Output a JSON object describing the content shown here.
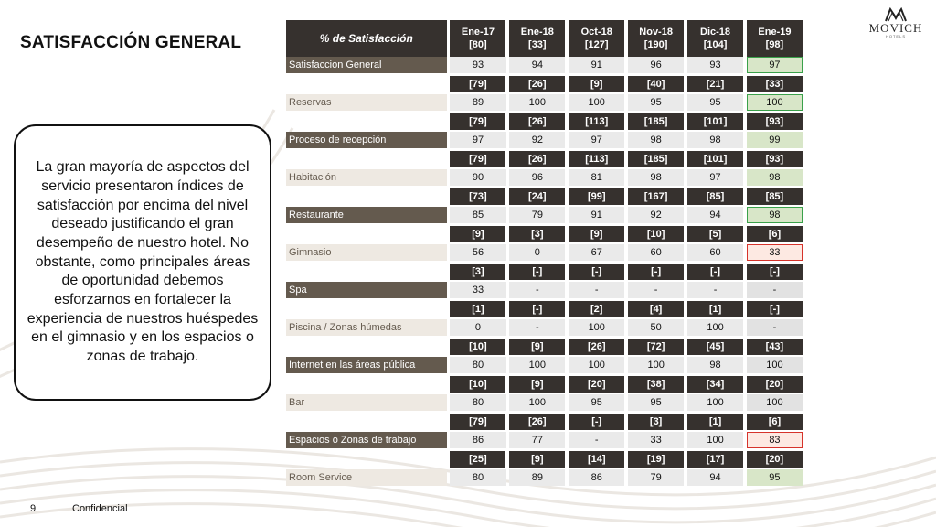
{
  "slide": {
    "title": "SATISFACCIÓN GENERAL",
    "callout": "La gran mayoría de aspectos del servicio presentaron índices de satisfacción por encima del nivel deseado justificando el gran desempeño de nuestro hotel. No obstante, como principales áreas de oportunidad debemos esforzarnos en fortalecer la experiencia de nuestros huéspedes en el gimnasio y en los espacios o zonas de trabajo.",
    "logo": {
      "name": "MOVICH",
      "sub": "HOTELS"
    },
    "footer": {
      "page": "9",
      "label": "Confidencial"
    }
  },
  "table": {
    "header_label": "% de Satisfacción",
    "columns": [
      {
        "period": "Ene-17",
        "n": "[80]"
      },
      {
        "period": "Ene-18",
        "n": "[33]"
      },
      {
        "period": "Oct-18",
        "n": "[127]"
      },
      {
        "period": "Nov-18",
        "n": "[190]"
      },
      {
        "period": "Dic-18",
        "n": "[104]"
      },
      {
        "period": "Ene-19",
        "n": "[98]"
      }
    ],
    "rows": [
      {
        "label": "Satisfaccion General",
        "style": "dark",
        "counts": [],
        "values": [
          "93",
          "94",
          "91",
          "96",
          "93",
          "97"
        ],
        "last_style": "hl-green"
      },
      {
        "label": "Reservas",
        "style": "light",
        "counts": [
          "[79]",
          "[26]",
          "[9]",
          "[40]",
          "[21]",
          "[33]"
        ],
        "values": [
          "89",
          "100",
          "100",
          "95",
          "95",
          "100"
        ],
        "last_style": "hl-green"
      },
      {
        "label": "Proceso de recepción",
        "style": "dark",
        "counts": [
          "[79]",
          "[26]",
          "[113]",
          "[185]",
          "[101]",
          "[93]"
        ],
        "values": [
          "97",
          "92",
          "97",
          "98",
          "98",
          "99"
        ],
        "last_style": "fill-green"
      },
      {
        "label": "Habitación",
        "style": "light",
        "counts": [
          "[79]",
          "[26]",
          "[113]",
          "[185]",
          "[101]",
          "[93]"
        ],
        "values": [
          "90",
          "96",
          "81",
          "98",
          "97",
          "98"
        ],
        "last_style": "fill-green"
      },
      {
        "label": "Restaurante",
        "style": "dark",
        "counts": [
          "[73]",
          "[24]",
          "[99]",
          "[167]",
          "[85]",
          "[85]"
        ],
        "values": [
          "85",
          "79",
          "91",
          "92",
          "94",
          "98"
        ],
        "last_style": "hl-green"
      },
      {
        "label": "Gimnasio",
        "style": "light",
        "counts": [
          "[9]",
          "[3]",
          "[9]",
          "[10]",
          "[5]",
          "[6]"
        ],
        "values": [
          "56",
          "0",
          "67",
          "60",
          "60",
          "33"
        ],
        "last_style": "hl-red"
      },
      {
        "label": "Spa",
        "style": "dark",
        "counts": [
          "[3]",
          "[-]",
          "[-]",
          "[-]",
          "[-]",
          "[-]"
        ],
        "values": [
          "33",
          "-",
          "-",
          "-",
          "-",
          "-"
        ],
        "last_style": "plain"
      },
      {
        "label": "Piscina / Zonas húmedas",
        "style": "light",
        "counts": [
          "[1]",
          "[-]",
          "[2]",
          "[4]",
          "[1]",
          "[-]"
        ],
        "values": [
          "0",
          "-",
          "100",
          "50",
          "100",
          "-"
        ],
        "last_style": "plain"
      },
      {
        "label": "Internet en las áreas pública",
        "style": "dark",
        "counts": [
          "[10]",
          "[9]",
          "[26]",
          "[72]",
          "[45]",
          "[43]"
        ],
        "values": [
          "80",
          "100",
          "100",
          "100",
          "98",
          "100"
        ],
        "last_style": "plain"
      },
      {
        "label": "Bar",
        "style": "light",
        "counts": [
          "[10]",
          "[9]",
          "[20]",
          "[38]",
          "[34]",
          "[20]"
        ],
        "values": [
          "80",
          "100",
          "95",
          "95",
          "100",
          "100"
        ],
        "last_style": "plain"
      },
      {
        "label": "Espacios o Zonas de trabajo",
        "style": "dark",
        "counts": [
          "[79]",
          "[26]",
          "[-]",
          "[3]",
          "[1]",
          "[6]"
        ],
        "values": [
          "86",
          "77",
          "-",
          "33",
          "100",
          "83"
        ],
        "last_style": "hl-red"
      },
      {
        "label": "Room Service",
        "style": "light",
        "counts": [
          "[25]",
          "[9]",
          "[14]",
          "[19]",
          "[17]",
          "[20]"
        ],
        "values": [
          "80",
          "89",
          "86",
          "79",
          "94",
          "95"
        ],
        "last_style": "fill-green"
      }
    ]
  }
}
